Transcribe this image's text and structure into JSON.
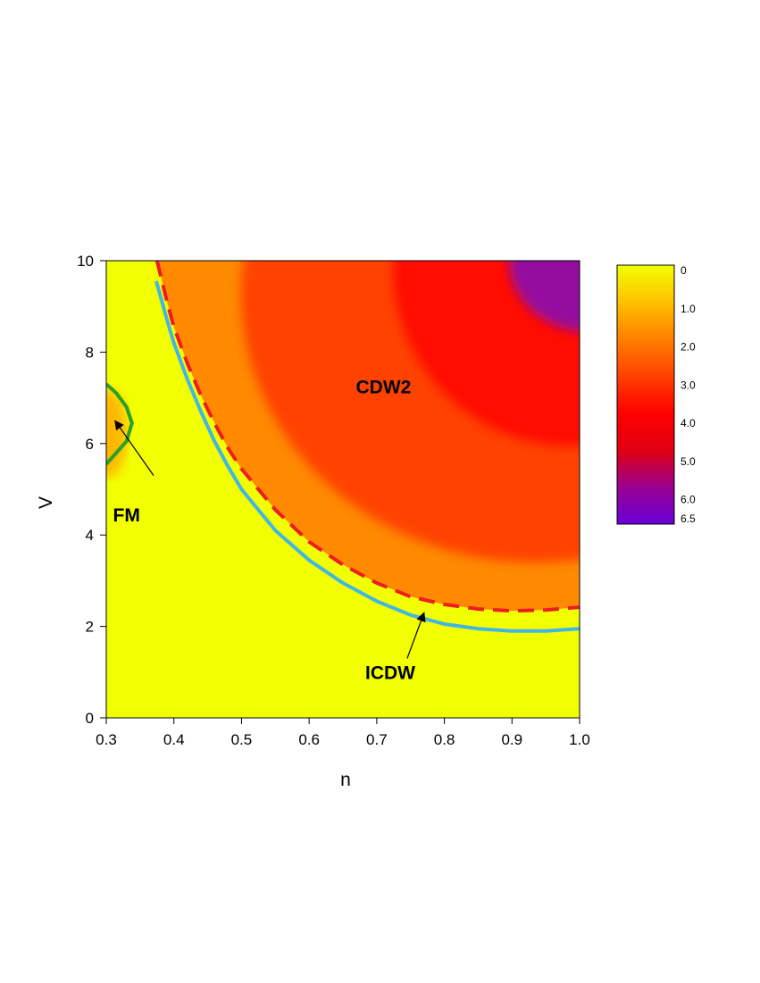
{
  "chart_data": {
    "type": "heatmap",
    "title": "",
    "xlabel": "n",
    "ylabel": "V",
    "xlim": [
      0.3,
      1.0
    ],
    "ylim": [
      0,
      10
    ],
    "xticks": [
      "0.3",
      "0.4",
      "0.5",
      "0.6",
      "0.7",
      "0.8",
      "0.9",
      "1.0"
    ],
    "yticks": [
      "0",
      "2",
      "4",
      "6",
      "8",
      "10"
    ],
    "grid": false,
    "colorbar": {
      "placement": "right",
      "range": [
        0,
        6.5
      ],
      "ticks": [
        "0",
        "1.0",
        "2.0",
        "3.0",
        "4.0",
        "5.0",
        "6.0",
        "6.5"
      ],
      "colors": [
        "#f2ff00",
        "#ffc000",
        "#ff8000",
        "#ff4000",
        "#ff0000",
        "#e00010",
        "#9a0090",
        "#6a00d8"
      ]
    },
    "regions": [
      {
        "label": "CDW2",
        "at": [
          0.71,
          7.1
        ]
      },
      {
        "label": "FM",
        "at": [
          0.33,
          4.3
        ]
      },
      {
        "label": "ICDW",
        "at": [
          0.72,
          0.85
        ]
      }
    ],
    "arrows": [
      {
        "from": [
          0.37,
          5.3
        ],
        "to": [
          0.313,
          6.5
        ]
      },
      {
        "from": [
          0.745,
          1.3
        ],
        "to": [
          0.77,
          2.3
        ]
      }
    ],
    "series": [
      {
        "style": "solid",
        "color": "#41b6e6",
        "x": [
          0.374,
          0.39,
          0.4,
          0.42,
          0.44,
          0.46,
          0.48,
          0.5,
          0.55,
          0.6,
          0.65,
          0.7,
          0.75,
          0.8,
          0.85,
          0.9,
          0.95,
          1.0
        ],
        "y": [
          9.55,
          8.7,
          8.2,
          7.4,
          6.7,
          6.05,
          5.5,
          5.0,
          4.1,
          3.45,
          2.95,
          2.55,
          2.25,
          2.05,
          1.95,
          1.9,
          1.9,
          1.95
        ]
      },
      {
        "style": "dashed",
        "color": "#ee1c25",
        "x": [
          0.375,
          0.39,
          0.4,
          0.42,
          0.44,
          0.46,
          0.48,
          0.5,
          0.55,
          0.6,
          0.65,
          0.7,
          0.75,
          0.8,
          0.85,
          0.9,
          0.95,
          1.0
        ],
        "y": [
          10.0,
          9.1,
          8.55,
          7.75,
          7.05,
          6.45,
          5.9,
          5.45,
          4.55,
          3.85,
          3.35,
          2.95,
          2.65,
          2.48,
          2.38,
          2.34,
          2.36,
          2.42
        ]
      },
      {
        "style": "solid",
        "color": "#2ca02c",
        "x": [
          0.3,
          0.315,
          0.33,
          0.338,
          0.33,
          0.315,
          0.3
        ],
        "y": [
          7.3,
          7.1,
          6.8,
          6.45,
          6.05,
          5.8,
          5.55
        ]
      }
    ]
  }
}
